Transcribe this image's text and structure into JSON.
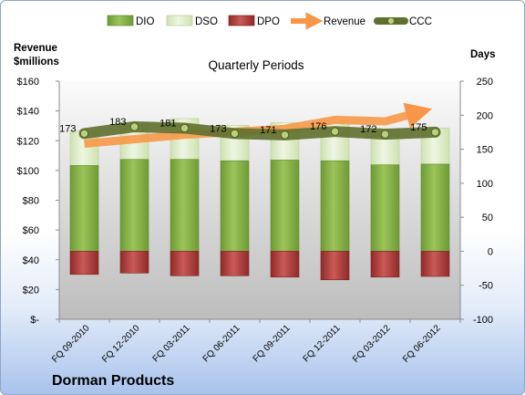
{
  "chart_data": {
    "type": "bar",
    "title": "Quarterly Periods",
    "company": "Dorman Products",
    "y_left_label_line1": "Revenue",
    "y_left_label_line2": "$millions",
    "y_right_label": "Days",
    "categories": [
      "FQ 09-2010",
      "FQ 12-2010",
      "FQ 03-2011",
      "FQ 06-2011",
      "FQ 09-2011",
      "FQ 12-2011",
      "FQ 03-2012",
      "FQ 06-2012"
    ],
    "left_axis": {
      "range": [
        0,
        160
      ],
      "ticks": [
        0,
        20,
        40,
        60,
        80,
        100,
        120,
        140,
        160
      ],
      "tick_labels": [
        "$-",
        "$20",
        "$40",
        "$60",
        "$80",
        "$100",
        "$120",
        "$140",
        "$160"
      ]
    },
    "right_axis": {
      "range": [
        -100,
        250
      ],
      "ticks": [
        -100,
        -50,
        0,
        50,
        100,
        150,
        200,
        250
      ],
      "tick_labels": [
        "-100",
        "-50",
        "0",
        "50",
        "100",
        "150",
        "200",
        "250"
      ]
    },
    "series": [
      {
        "name": "DIO",
        "axis": "days",
        "color": "#8db54a",
        "values": [
          126,
          135,
          135,
          133,
          134,
          133,
          127,
          128
        ]
      },
      {
        "name": "DSO",
        "axis": "days",
        "color": "#e2efcf",
        "values": [
          51,
          54,
          60,
          52,
          55,
          60,
          53,
          53
        ]
      },
      {
        "name": "DPO",
        "axis": "days",
        "color": "#c0504d",
        "values": [
          -34,
          -32,
          -36,
          -36,
          -38,
          -42,
          -38,
          -37
        ]
      },
      {
        "name": "Revenue",
        "axis": "revenue",
        "color": "#f79646",
        "values": [
          118,
          121,
          124,
          126,
          128,
          134,
          133,
          142
        ]
      },
      {
        "name": "CCC",
        "axis": "days",
        "color": "#6e7d3c",
        "values": [
          173,
          183,
          181,
          173,
          171,
          176,
          172,
          175
        ]
      }
    ],
    "ccc_labels": [
      "173",
      "183",
      "181",
      "173",
      "171",
      "176",
      "172",
      "175"
    ],
    "legend": {
      "position": "top",
      "entries": [
        "DIO",
        "DSO",
        "DPO",
        "Revenue",
        "CCC"
      ]
    },
    "grid": false
  }
}
